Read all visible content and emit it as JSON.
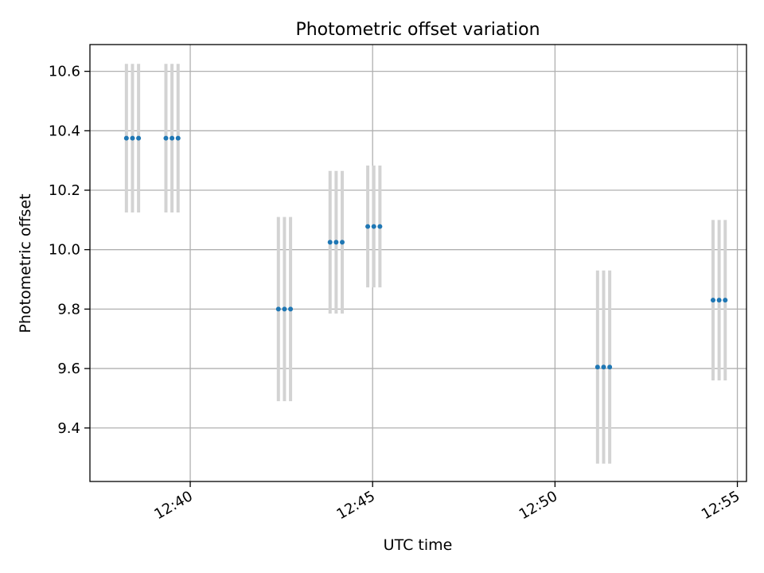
{
  "chart_data": {
    "type": "scatter",
    "title": "Photometric offset variation",
    "xlabel": "UTC time",
    "ylabel": "Photometric offset",
    "xlim": [
      "12:37:15",
      "12:55:15"
    ],
    "ylim": [
      9.22,
      10.69
    ],
    "x_ticks": [
      "12:40",
      "12:45",
      "12:50",
      "12:55"
    ],
    "y_ticks": [
      "9.4",
      "9.6",
      "9.8",
      "10.0",
      "10.2",
      "10.4",
      "10.6"
    ],
    "grid": true,
    "marker_color": "#1f77b4",
    "errorbar_color": "#d3d3d3",
    "groups": [
      {
        "times": [
          "12:38:15",
          "12:38:25",
          "12:38:35"
        ],
        "y": 10.375,
        "err": 0.25
      },
      {
        "times": [
          "12:39:20",
          "12:39:30",
          "12:39:40"
        ],
        "y": 10.375,
        "err": 0.25
      },
      {
        "times": [
          "12:42:25",
          "12:42:35",
          "12:42:45"
        ],
        "y": 9.8,
        "err": 0.31
      },
      {
        "times": [
          "12:43:50",
          "12:44:00",
          "12:44:10"
        ],
        "y": 10.025,
        "err": 0.24
      },
      {
        "times": [
          "12:44:52",
          "12:45:02",
          "12:45:12"
        ],
        "y": 10.078,
        "err": 0.205
      },
      {
        "times": [
          "12:51:10",
          "12:51:20",
          "12:51:30"
        ],
        "y": 9.605,
        "err": 0.325
      },
      {
        "times": [
          "12:54:20",
          "12:54:30",
          "12:54:40"
        ],
        "y": 9.83,
        "err": 0.27
      }
    ]
  }
}
